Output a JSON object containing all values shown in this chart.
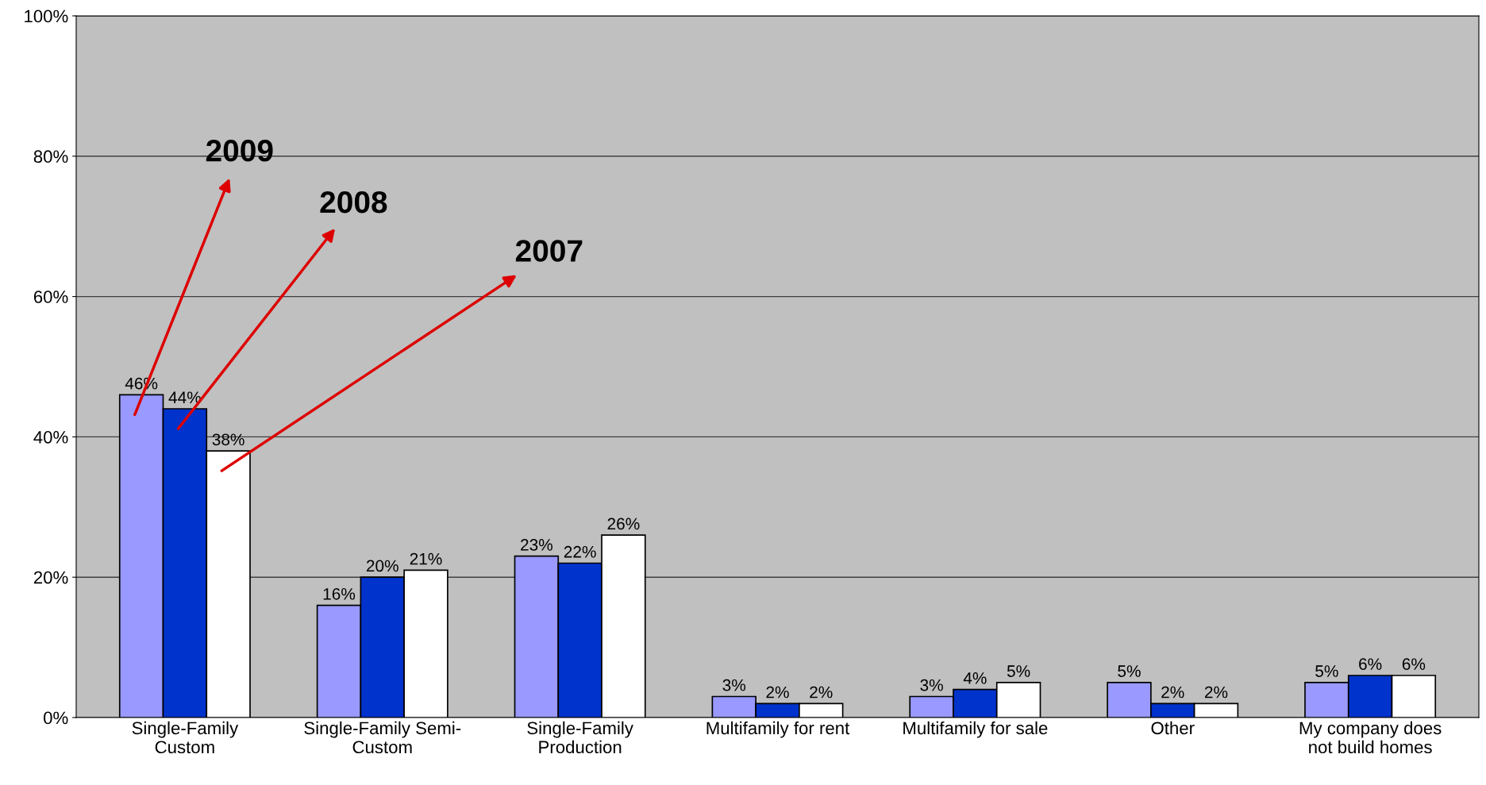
{
  "chart_data": {
    "type": "bar",
    "categories": [
      "Single-Family\nCustom",
      "Single-Family Semi-\nCustom",
      "Single-Family\nProduction",
      "Multifamily for rent",
      "Multifamily for sale",
      "Other",
      "My company does\nnot build homes"
    ],
    "series": [
      {
        "name": "2009",
        "color": "#9999ff",
        "values": [
          46,
          16,
          23,
          3,
          3,
          5,
          5
        ]
      },
      {
        "name": "2008",
        "color": "#0033cc",
        "values": [
          44,
          20,
          22,
          2,
          4,
          2,
          6
        ]
      },
      {
        "name": "2007",
        "color": "#ffffff",
        "values": [
          38,
          21,
          26,
          2,
          5,
          2,
          6
        ]
      }
    ],
    "ylim": [
      0,
      100
    ],
    "yticks": [
      {
        "value": 0,
        "label": "0%"
      },
      {
        "value": 20,
        "label": "20%"
      },
      {
        "value": 40,
        "label": "40%"
      },
      {
        "value": 60,
        "label": "60%"
      },
      {
        "value": 80,
        "label": "80%"
      },
      {
        "value": 100,
        "label": "100%"
      }
    ],
    "grid": "y",
    "legend": false,
    "value_labels": [
      [
        "46%",
        "16%",
        "23%",
        "3%",
        "3%",
        "5%",
        "5%"
      ],
      [
        "44%",
        "20%",
        "22%",
        "2%",
        "4%",
        "2%",
        "6%"
      ],
      [
        "38%",
        "21%",
        "26%",
        "2%",
        "5%",
        "2%",
        "6%"
      ]
    ]
  }
}
